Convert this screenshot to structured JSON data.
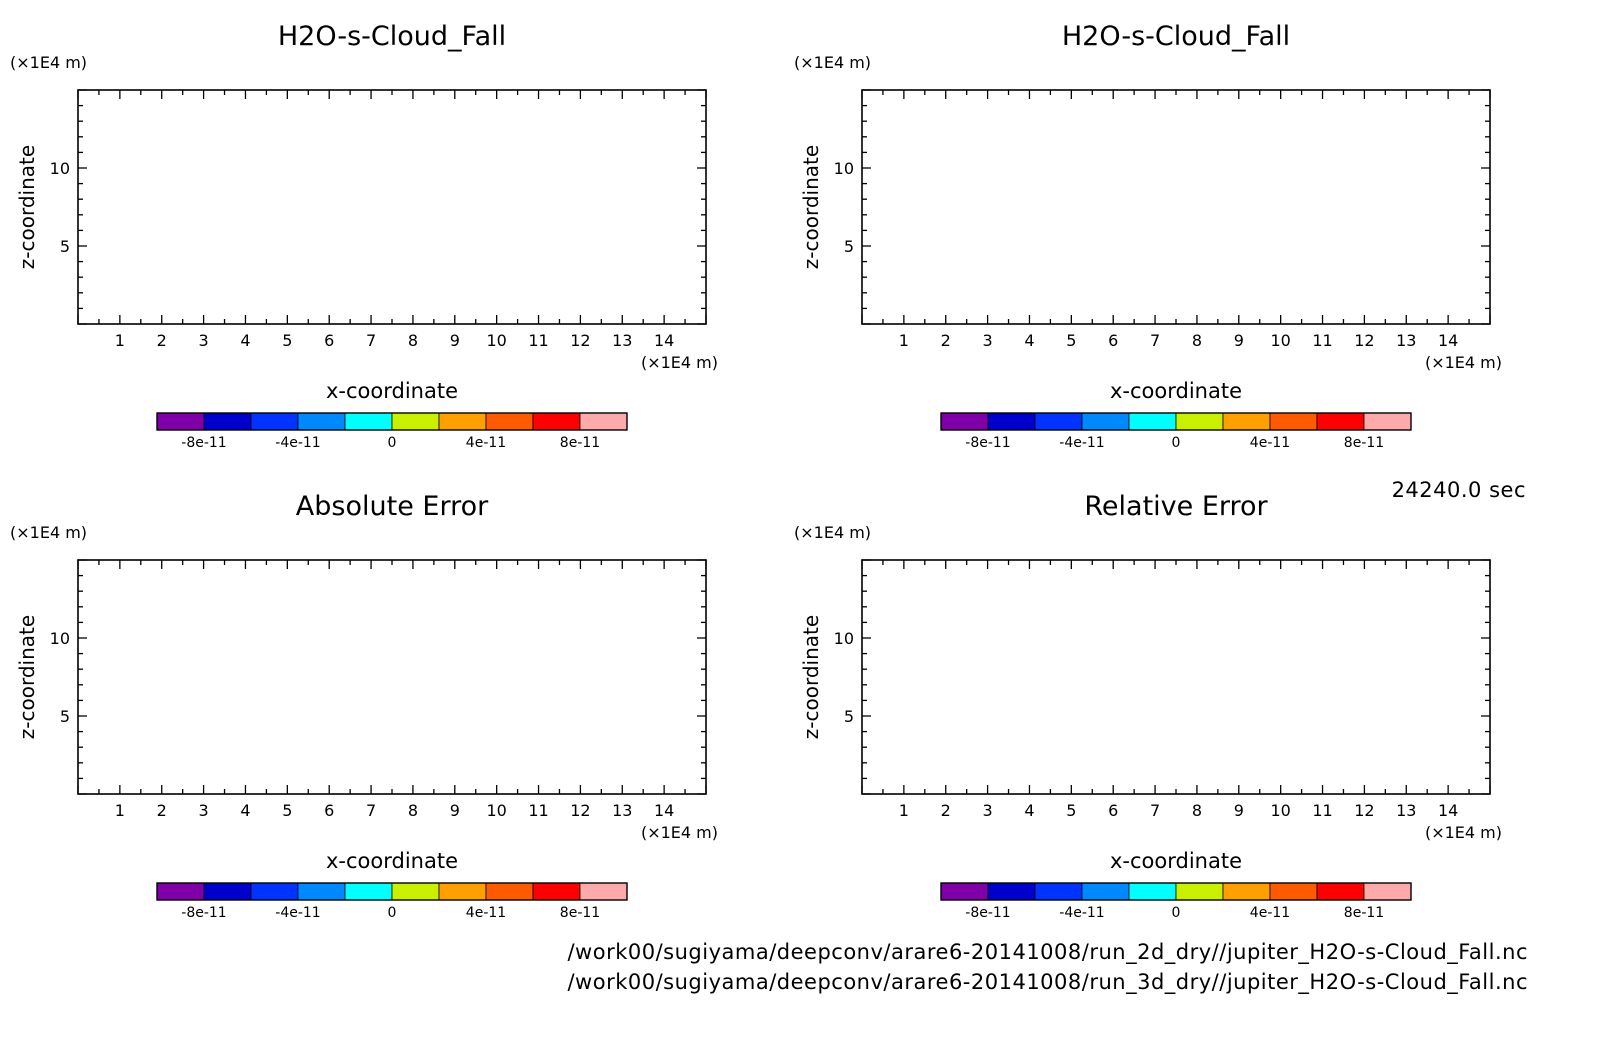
{
  "figure": {
    "time_label": "24240.0 sec",
    "file_paths": [
      "/work00/sugiyama/deepconv/arare6-20141008/run_2d_dry//jupiter_H2O-s-Cloud_Fall.nc",
      "/work00/sugiyama/deepconv/arare6-20141008/run_3d_dry//jupiter_H2O-s-Cloud_Fall.nc"
    ]
  },
  "chart_data": [
    {
      "type": "heatmap",
      "title": "H2O-s-Cloud_Fall",
      "xlabel": "x-coordinate",
      "ylabel": "z-coordinate",
      "x_unit": "(×1E4 m)",
      "y_unit": "(×1E4 m)",
      "xlim": [
        0,
        15
      ],
      "ylim": [
        0,
        15
      ],
      "x_ticks": [
        "1",
        "2",
        "3",
        "4",
        "5",
        "6",
        "7",
        "8",
        "9",
        "10",
        "11",
        "12",
        "13",
        "14"
      ],
      "y_ticks": [
        "5",
        "10"
      ],
      "values": [],
      "colorbar": {
        "labels": [
          "-8e-11",
          "-4e-11",
          "0",
          "4e-11",
          "8e-11"
        ],
        "colors": [
          "#7f00a8",
          "#0000cc",
          "#0033ff",
          "#0088ff",
          "#00ffff",
          "#c8f000",
          "#ffa000",
          "#ff5a00",
          "#ff0000",
          "#ffaaaa"
        ]
      }
    },
    {
      "type": "heatmap",
      "title": "H2O-s-Cloud_Fall",
      "xlabel": "x-coordinate",
      "ylabel": "z-coordinate",
      "x_unit": "(×1E4 m)",
      "y_unit": "(×1E4 m)",
      "xlim": [
        0,
        15
      ],
      "ylim": [
        0,
        15
      ],
      "x_ticks": [
        "1",
        "2",
        "3",
        "4",
        "5",
        "6",
        "7",
        "8",
        "9",
        "10",
        "11",
        "12",
        "13",
        "14"
      ],
      "y_ticks": [
        "5",
        "10"
      ],
      "values": [],
      "colorbar": {
        "labels": [
          "-8e-11",
          "-4e-11",
          "0",
          "4e-11",
          "8e-11"
        ],
        "colors": [
          "#7f00a8",
          "#0000cc",
          "#0033ff",
          "#0088ff",
          "#00ffff",
          "#c8f000",
          "#ffa000",
          "#ff5a00",
          "#ff0000",
          "#ffaaaa"
        ]
      }
    },
    {
      "type": "heatmap",
      "title": "Absolute Error",
      "xlabel": "x-coordinate",
      "ylabel": "z-coordinate",
      "x_unit": "(×1E4 m)",
      "y_unit": "(×1E4 m)",
      "xlim": [
        0,
        15
      ],
      "ylim": [
        0,
        15
      ],
      "x_ticks": [
        "1",
        "2",
        "3",
        "4",
        "5",
        "6",
        "7",
        "8",
        "9",
        "10",
        "11",
        "12",
        "13",
        "14"
      ],
      "y_ticks": [
        "5",
        "10"
      ],
      "values": [],
      "colorbar": {
        "labels": [
          "-8e-11",
          "-4e-11",
          "0",
          "4e-11",
          "8e-11"
        ],
        "colors": [
          "#7f00a8",
          "#0000cc",
          "#0033ff",
          "#0088ff",
          "#00ffff",
          "#c8f000",
          "#ffa000",
          "#ff5a00",
          "#ff0000",
          "#ffaaaa"
        ]
      }
    },
    {
      "type": "heatmap",
      "title": "Relative Error",
      "xlabel": "x-coordinate",
      "ylabel": "z-coordinate",
      "x_unit": "(×1E4 m)",
      "y_unit": "(×1E4 m)",
      "xlim": [
        0,
        15
      ],
      "ylim": [
        0,
        15
      ],
      "x_ticks": [
        "1",
        "2",
        "3",
        "4",
        "5",
        "6",
        "7",
        "8",
        "9",
        "10",
        "11",
        "12",
        "13",
        "14"
      ],
      "y_ticks": [
        "5",
        "10"
      ],
      "values": [],
      "colorbar": {
        "labels": [
          "-8e-11",
          "-4e-11",
          "0",
          "4e-11",
          "8e-11"
        ],
        "colors": [
          "#7f00a8",
          "#0000cc",
          "#0033ff",
          "#0088ff",
          "#00ffff",
          "#c8f000",
          "#ffa000",
          "#ff5a00",
          "#ff0000",
          "#ffaaaa"
        ]
      }
    }
  ]
}
